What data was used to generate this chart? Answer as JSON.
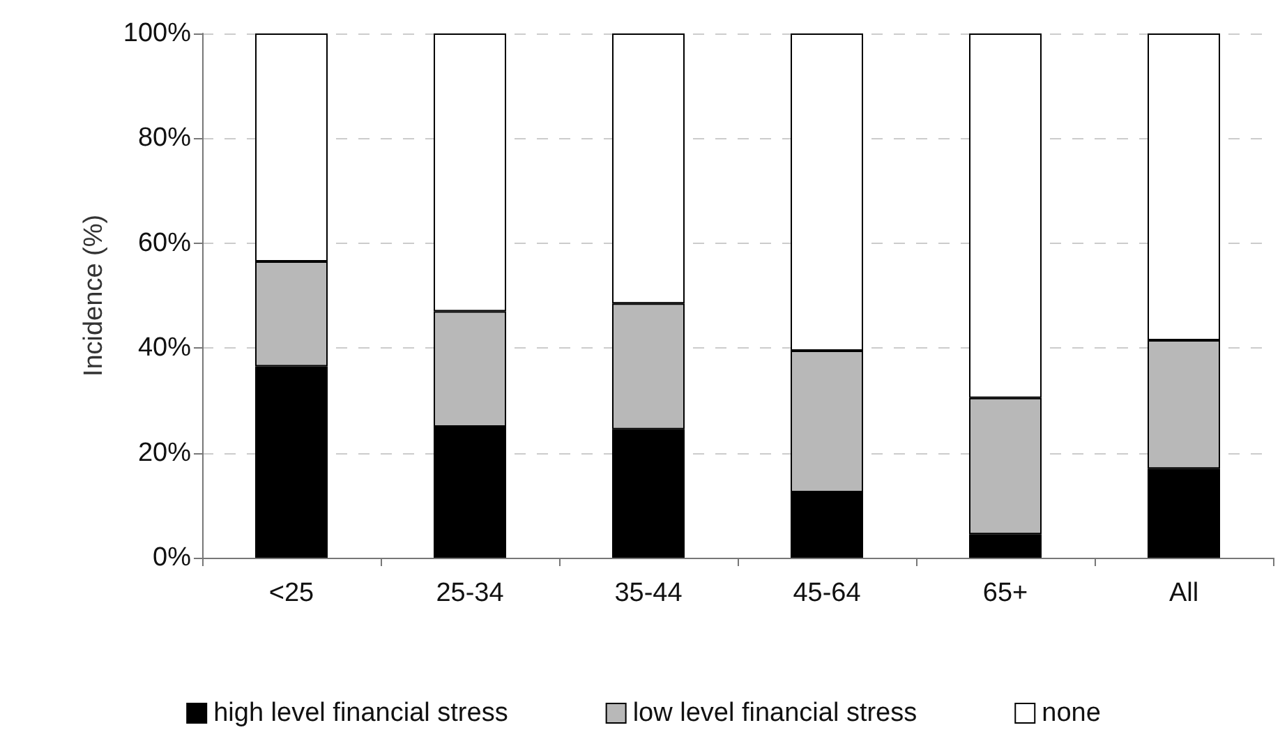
{
  "chart_data": {
    "type": "bar",
    "stacked": true,
    "categories": [
      "<25",
      "25-34",
      "35-44",
      "45-64",
      "65+",
      "All"
    ],
    "ylabel": "Incidence (%)",
    "series": [
      {
        "name": "high level financial stress",
        "color": "#000000",
        "values": [
          36.5,
          25,
          24.5,
          12.5,
          4.5,
          17
        ]
      },
      {
        "name": "low level financial stress",
        "color": "#b8b8b8",
        "values": [
          20,
          22,
          24,
          27,
          26,
          24.5
        ]
      },
      {
        "name": "none",
        "color": "#ffffff",
        "values": [
          43.5,
          53,
          51.5,
          60.5,
          69.5,
          58.5
        ]
      }
    ],
    "ylim": [
      0,
      100
    ],
    "yticks": [
      {
        "value": 0,
        "label": "0%"
      },
      {
        "value": 20,
        "label": "20%"
      },
      {
        "value": 40,
        "label": "40%"
      },
      {
        "value": 60,
        "label": "60%"
      },
      {
        "value": 80,
        "label": "80%"
      },
      {
        "value": 100,
        "label": "100%"
      }
    ],
    "grid": "y",
    "legend": "bottom"
  }
}
